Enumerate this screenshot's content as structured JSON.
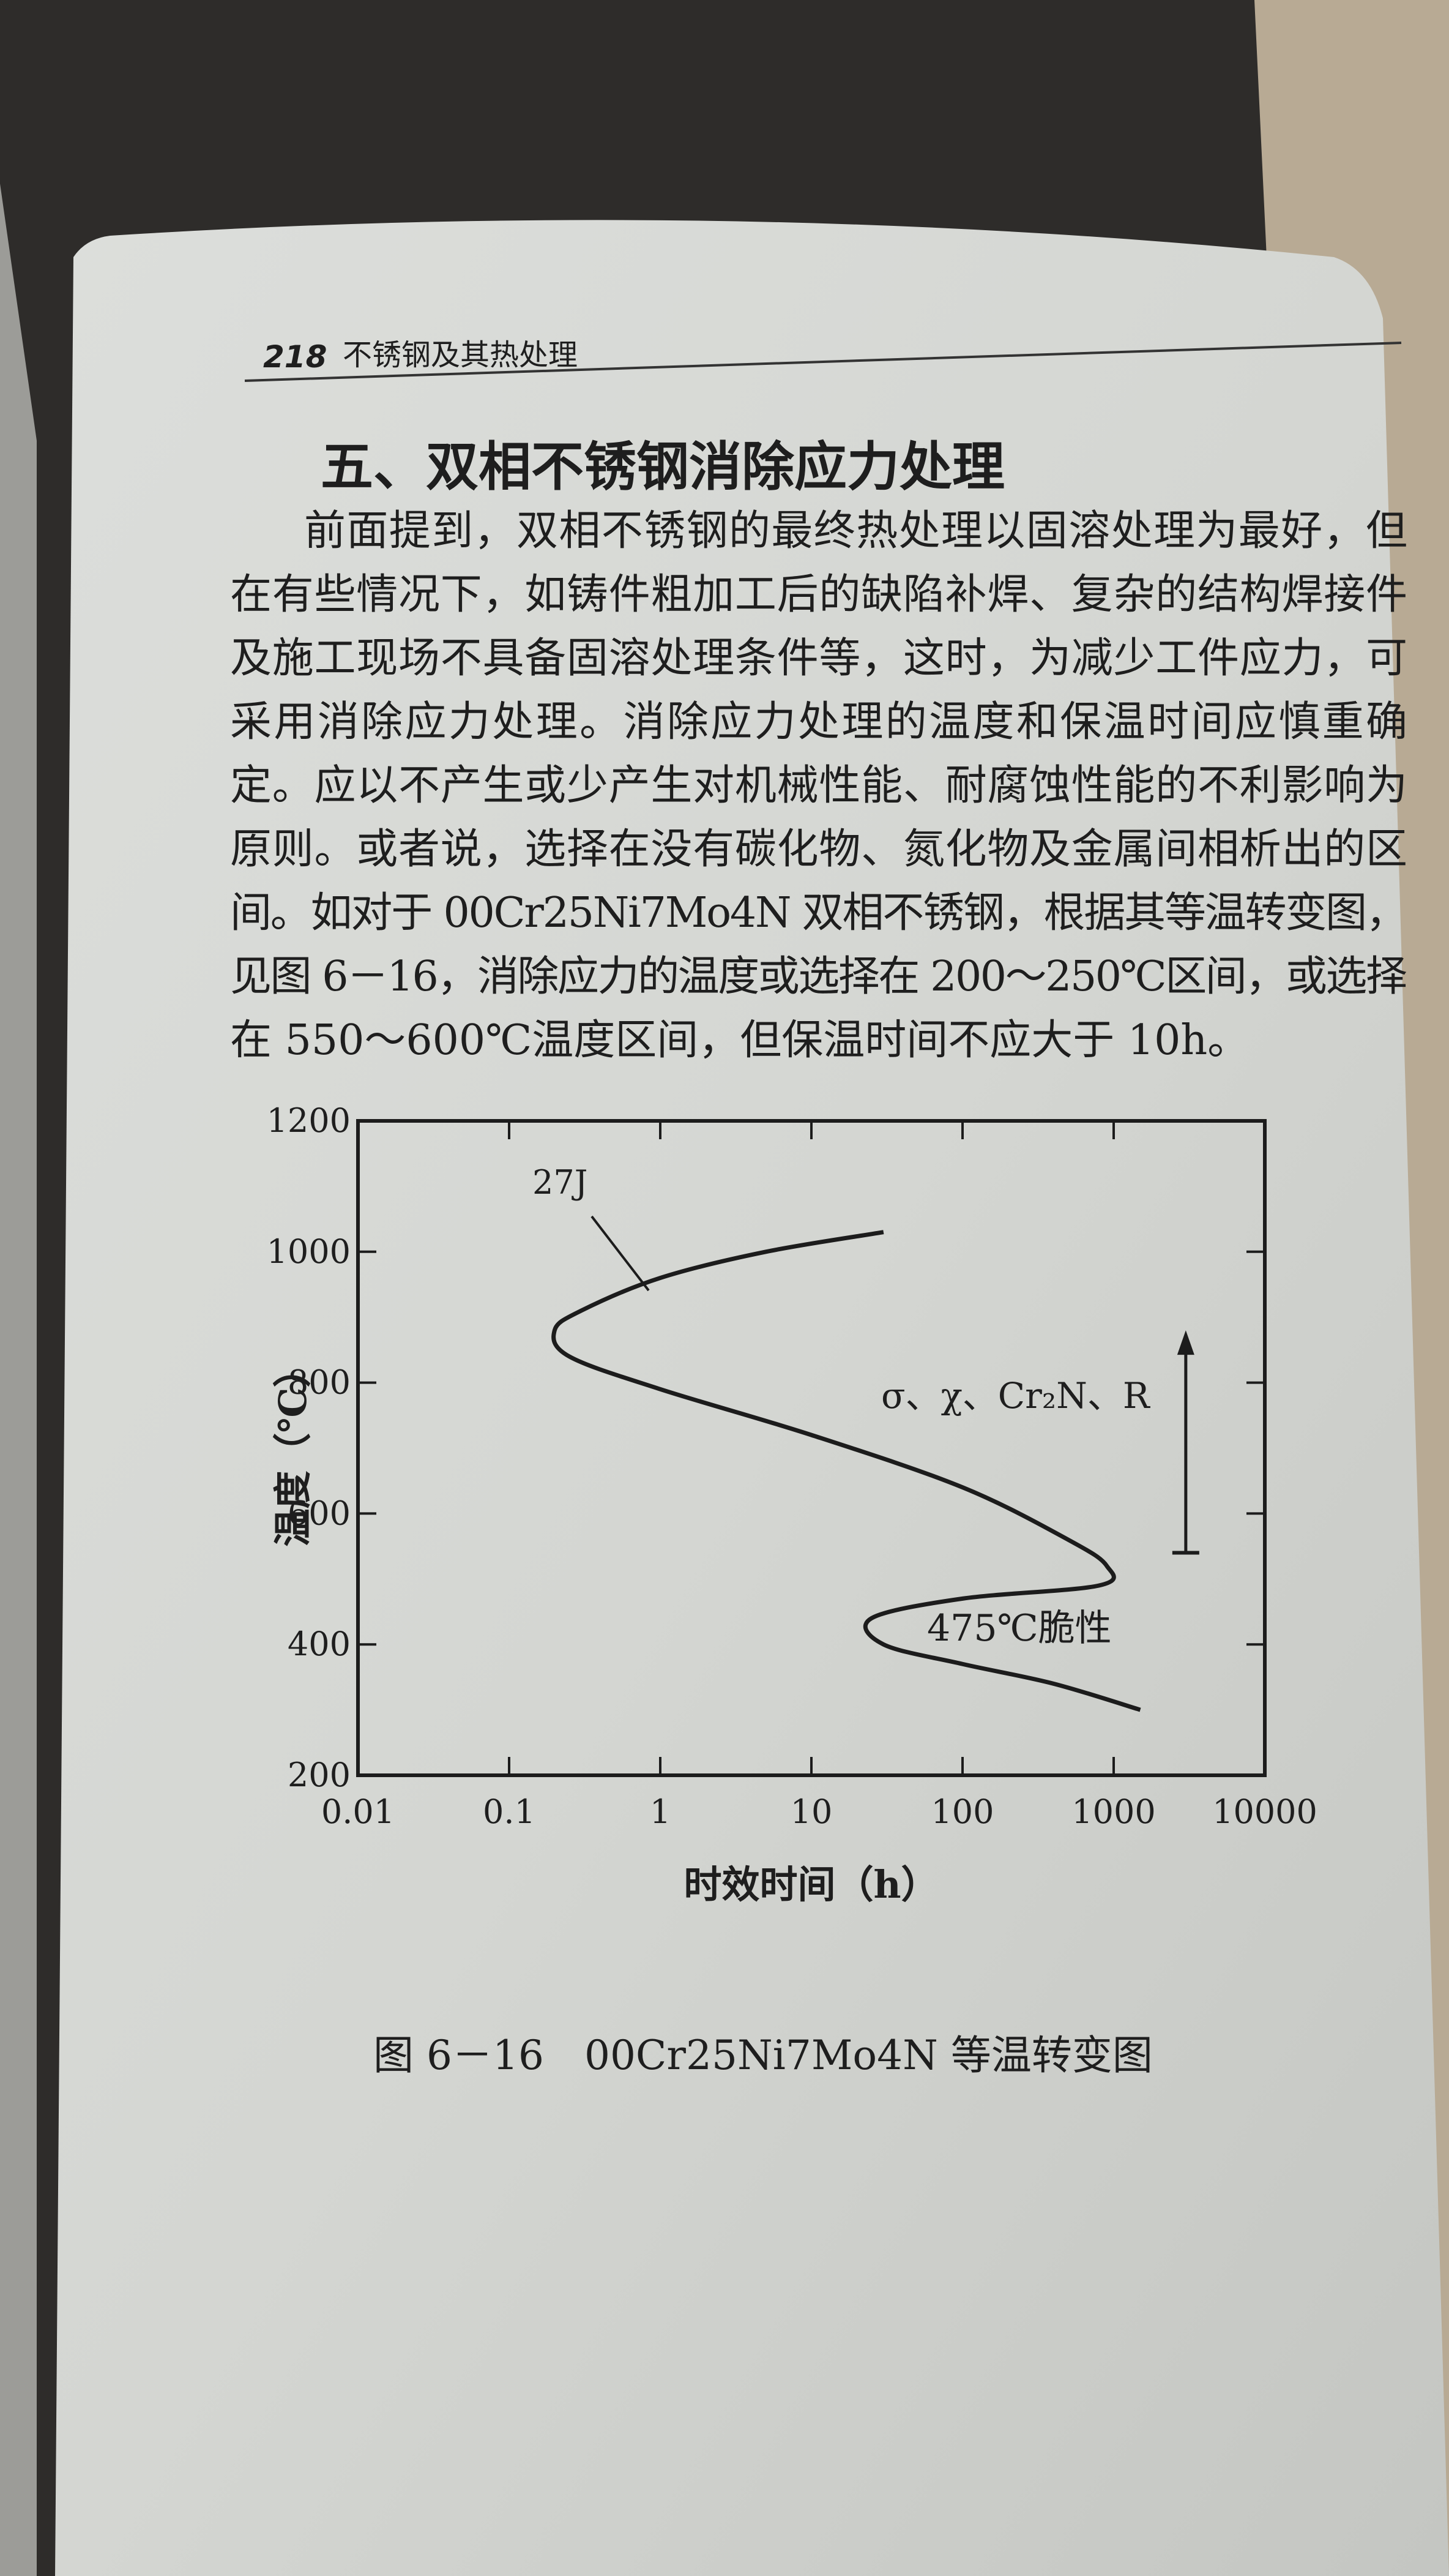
{
  "header": {
    "page_number": "218",
    "running_title": "不锈钢及其热处理"
  },
  "heading": "五、双相不锈钢消除应力处理",
  "paragraph": [
    "前面提到，双相不锈钢的最终热处理以固溶处理为最好，但",
    "在有些情况下，如铸件粗加工后的缺陷补焊、复杂的结构焊接件",
    "及施工现场不具备固溶处理条件等，这时，为减少工件应力，可",
    "采用消除应力处理。消除应力处理的温度和保温时间应慎重确",
    "定。应以不产生或少产生对机械性能、耐腐蚀性能的不利影响为",
    "原则。或者说，选择在没有碳化物、氮化物及金属间相析出的区",
    "间。如对于 00Cr25Ni7Mo4N 双相不锈钢，根据其等温转变图，",
    "见图 6－16，消除应力的温度或选择在 200～250℃区间，或选择",
    "在 550～600℃温度区间，但保温时间不应大于 10h。"
  ],
  "chart_data": {
    "type": "line",
    "xlabel": "时效时间（h）",
    "ylabel": "温度（℃）",
    "x_scale": "log",
    "xlim": [
      0.01,
      10000
    ],
    "xticks": [
      0.01,
      0.1,
      1,
      10,
      100,
      1000,
      10000
    ],
    "ylim": [
      200,
      1200
    ],
    "yticks": [
      200,
      400,
      600,
      800,
      1000,
      1200
    ],
    "series": [
      {
        "name": "27J",
        "color": "#1c1c1c",
        "x": [
          30,
          5,
          1,
          0.3,
          0.2,
          0.25,
          1,
          10,
          100,
          500,
          900,
          800,
          100,
          25,
          30,
          100,
          400,
          1500
        ],
        "values": [
          1030,
          1000,
          960,
          910,
          880,
          840,
          790,
          720,
          640,
          560,
          520,
          490,
          470,
          440,
          400,
          370,
          340,
          300
        ]
      }
    ],
    "annotations": [
      {
        "text": "σ、χ、Cr₂N、R",
        "x": 3000,
        "range": [
          540,
          880
        ]
      },
      {
        "text": "475℃脆性"
      }
    ]
  },
  "figure_caption": "图 6－16　00Cr25Ni7Mo4N 等温转变图"
}
